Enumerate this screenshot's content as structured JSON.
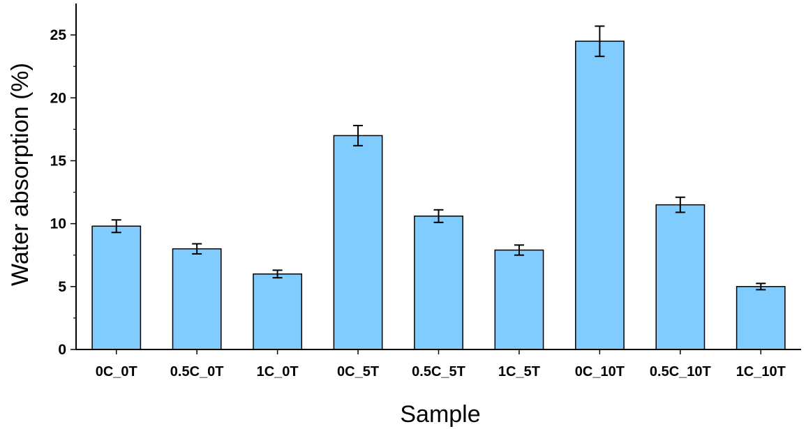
{
  "chart_data": {
    "type": "bar",
    "xlabel": "Sample",
    "ylabel": "Water absorption (%)",
    "categories": [
      "0C_0T",
      "0.5C_0T",
      "1C_0T",
      "0C_5T",
      "0.5C_5T",
      "1C_5T",
      "0C_10T",
      "0.5C_10T",
      "1C_10T"
    ],
    "values": [
      9.8,
      8.0,
      6.0,
      17.0,
      10.6,
      7.9,
      24.5,
      11.5,
      5.0
    ],
    "errors": [
      0.5,
      0.4,
      0.3,
      0.8,
      0.5,
      0.4,
      1.2,
      0.6,
      0.25
    ],
    "ylim": [
      0,
      27.5
    ],
    "yticks": [
      0,
      5,
      10,
      15,
      20,
      25
    ],
    "grid": false,
    "legend": "none",
    "bar_color": "#80ccff",
    "edge_color": "#000000"
  }
}
